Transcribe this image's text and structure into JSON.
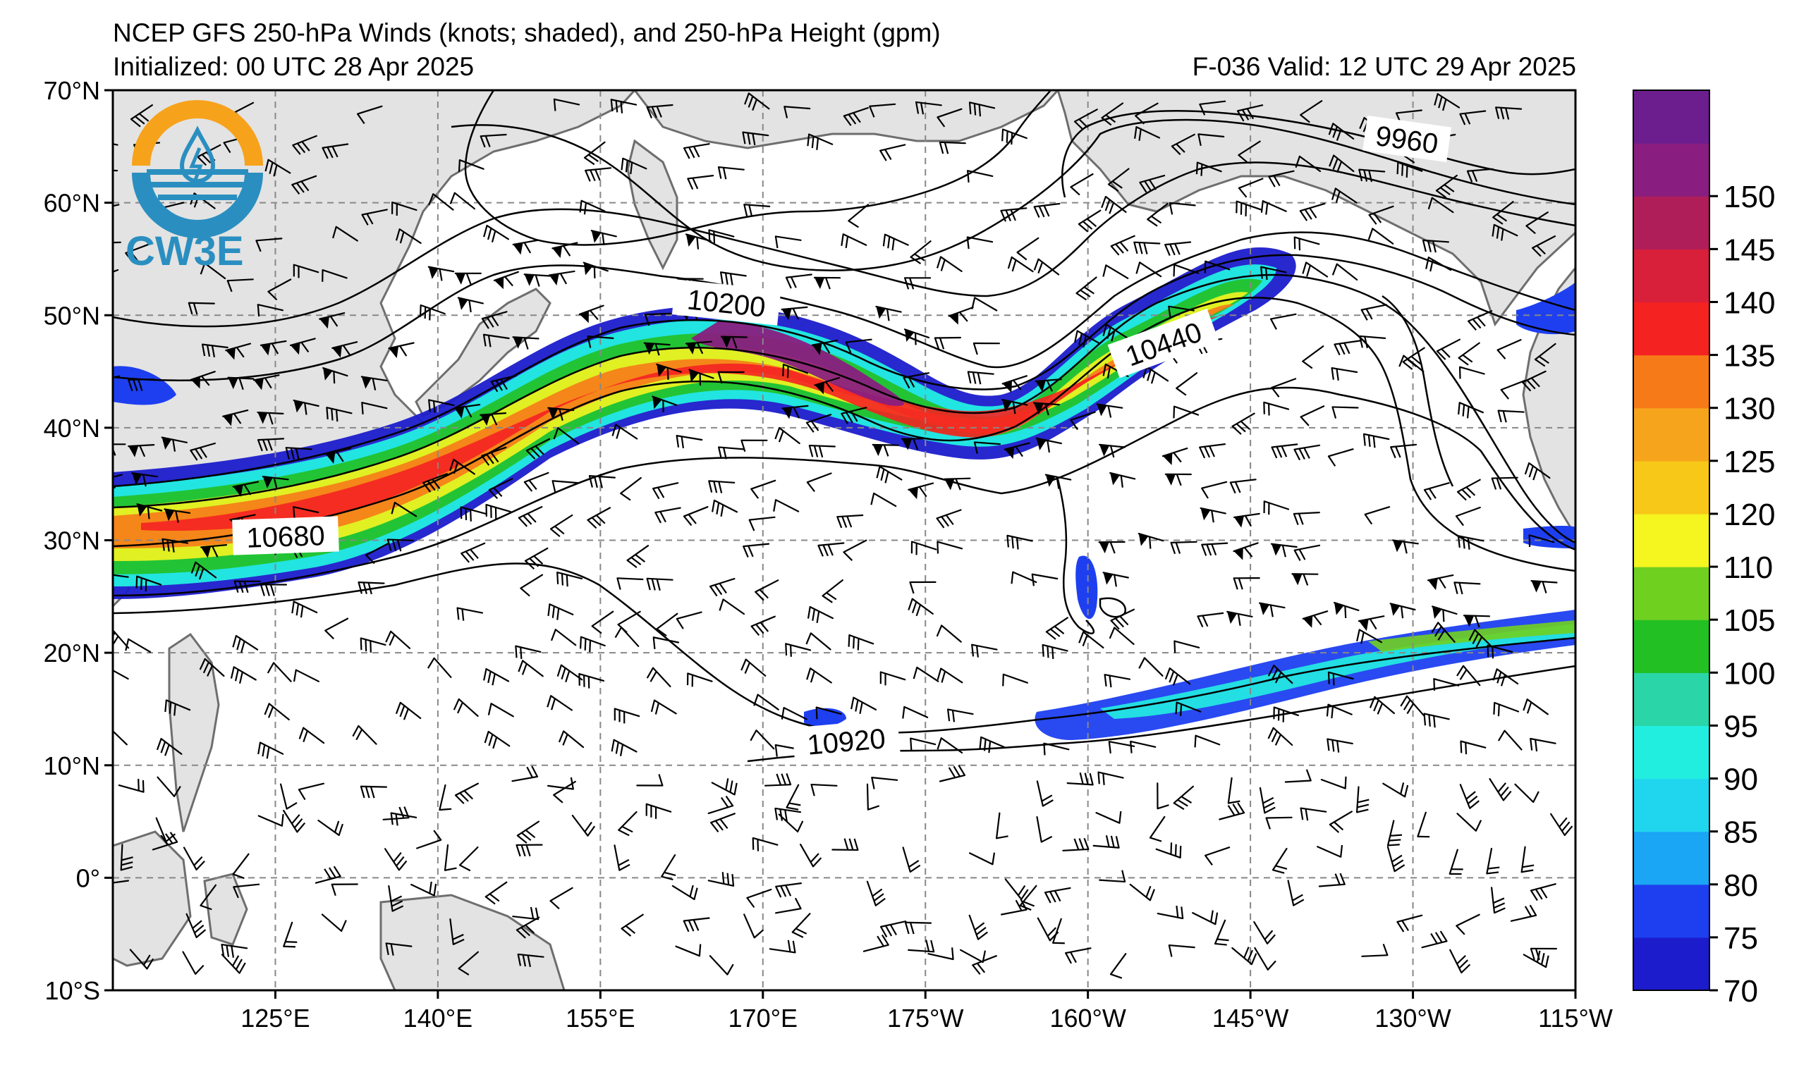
{
  "header": {
    "title": "NCEP GFS 250-hPa Winds (knots; shaded), and 250-hPa Height (gpm)",
    "init": "Initialized: 00 UTC 28 Apr 2025",
    "valid": "F-036  Valid: 12 UTC 29 Apr 2025"
  },
  "logo": {
    "text": "CW3E",
    "icon": "water-drop-logo-icon"
  },
  "map": {
    "projection": "equirectangular",
    "lon_range": [
      110,
      245
    ],
    "lat_range": [
      -10,
      70
    ],
    "lon_ticks": [
      {
        "lon": 125,
        "label": "125°E"
      },
      {
        "lon": 140,
        "label": "140°E"
      },
      {
        "lon": 155,
        "label": "155°E"
      },
      {
        "lon": 170,
        "label": "170°E"
      },
      {
        "lon": 185,
        "label": "175°W"
      },
      {
        "lon": 200,
        "label": "160°W"
      },
      {
        "lon": 215,
        "label": "145°W"
      },
      {
        "lon": 230,
        "label": "130°W"
      },
      {
        "lon": 245,
        "label": "115°W"
      }
    ],
    "lat_ticks": [
      {
        "lat": 70,
        "label": "70°N"
      },
      {
        "lat": 60,
        "label": "60°N"
      },
      {
        "lat": 50,
        "label": "50°N"
      },
      {
        "lat": 40,
        "label": "40°N"
      },
      {
        "lat": 30,
        "label": "30°N"
      },
      {
        "lat": 20,
        "label": "20°N"
      },
      {
        "lat": 10,
        "label": "10°N"
      },
      {
        "lat": 0,
        "label": "0°"
      },
      {
        "lat": -10,
        "label": "10°S"
      }
    ],
    "contour_labels": [
      "9960",
      "10200",
      "10440",
      "10680",
      "10920"
    ],
    "grid": true
  },
  "colorbar": {
    "levels": [
      70,
      75,
      80,
      85,
      90,
      95,
      100,
      105,
      110,
      120,
      125,
      130,
      135,
      140,
      145,
      150
    ],
    "colors": [
      "#1c1ccc",
      "#1e3ff0",
      "#1aa6f4",
      "#20d6ee",
      "#22eee0",
      "#2ad6a8",
      "#22c022",
      "#70d020",
      "#f5f520",
      "#f7c818",
      "#f6a41c",
      "#f77a18",
      "#f52222",
      "#d8203a",
      "#b01e5a",
      "#8a1e80",
      "#6c1e8e"
    ],
    "labels": [
      "70",
      "75",
      "80",
      "85",
      "90",
      "95",
      "100",
      "105",
      "110",
      "120",
      "125",
      "130",
      "135",
      "140",
      "145",
      "150"
    ]
  }
}
